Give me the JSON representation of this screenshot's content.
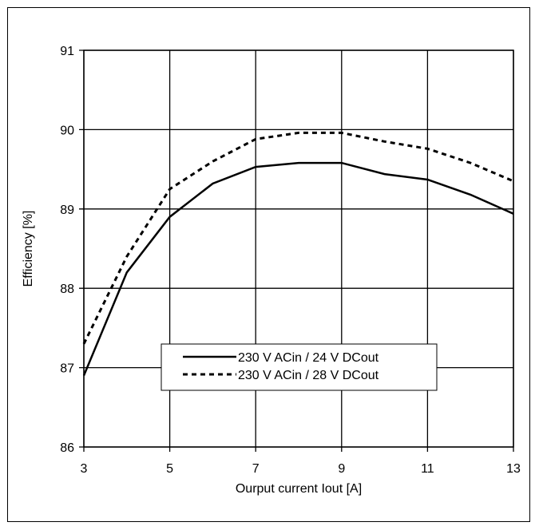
{
  "chart_data": {
    "type": "line",
    "title": "",
    "xlabel": "Ourput current Iout [A]",
    "ylabel": "Efficiency [%]",
    "xlim": [
      3,
      13
    ],
    "ylim": [
      86,
      91
    ],
    "xticks": [
      3,
      5,
      7,
      9,
      11,
      13
    ],
    "yticks": [
      86,
      87,
      88,
      89,
      90,
      91
    ],
    "grid": true,
    "legend_position": "bottom-center",
    "series": [
      {
        "name": "230 V ACin / 24 V DCout",
        "style": "solid",
        "color": "#000000",
        "x": [
          3,
          4,
          5,
          6,
          7,
          8,
          9,
          10,
          11,
          12,
          13
        ],
        "y": [
          86.9,
          88.2,
          88.9,
          89.32,
          89.53,
          89.58,
          89.58,
          89.44,
          89.37,
          89.18,
          88.94
        ]
      },
      {
        "name": "230 V ACin / 28 V DCout",
        "style": "dashed",
        "color": "#000000",
        "x": [
          3,
          4,
          5,
          6,
          7,
          8,
          9,
          10,
          11,
          12,
          13
        ],
        "y": [
          87.3,
          88.4,
          89.25,
          89.6,
          89.88,
          89.96,
          89.96,
          89.85,
          89.76,
          89.58,
          89.35
        ]
      }
    ]
  }
}
